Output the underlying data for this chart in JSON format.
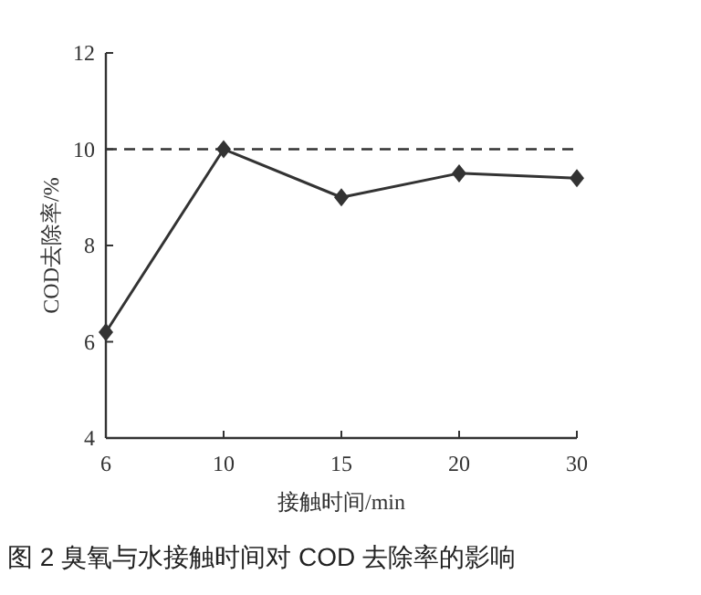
{
  "chart_data": {
    "type": "line",
    "xlabel": "接触时间/min",
    "ylabel": "COD去除率/%",
    "categories": [
      "6",
      "10",
      "15",
      "20",
      "30"
    ],
    "series": [
      {
        "color": "#333333",
        "values": [
          6.2,
          10.0,
          9.0,
          9.5,
          9.4
        ]
      }
    ],
    "ylim": [
      4,
      12
    ],
    "yticks": [
      4,
      6,
      8,
      10,
      12
    ],
    "marker": "diamond",
    "line_style": "solid",
    "ref_lines": [
      {
        "axis": "y",
        "value": 10,
        "line_style": "dashed",
        "color": "#333333"
      }
    ],
    "annotations": [
      "图 2 臭氧与水接触时间对 COD 去除率的影响"
    ]
  }
}
